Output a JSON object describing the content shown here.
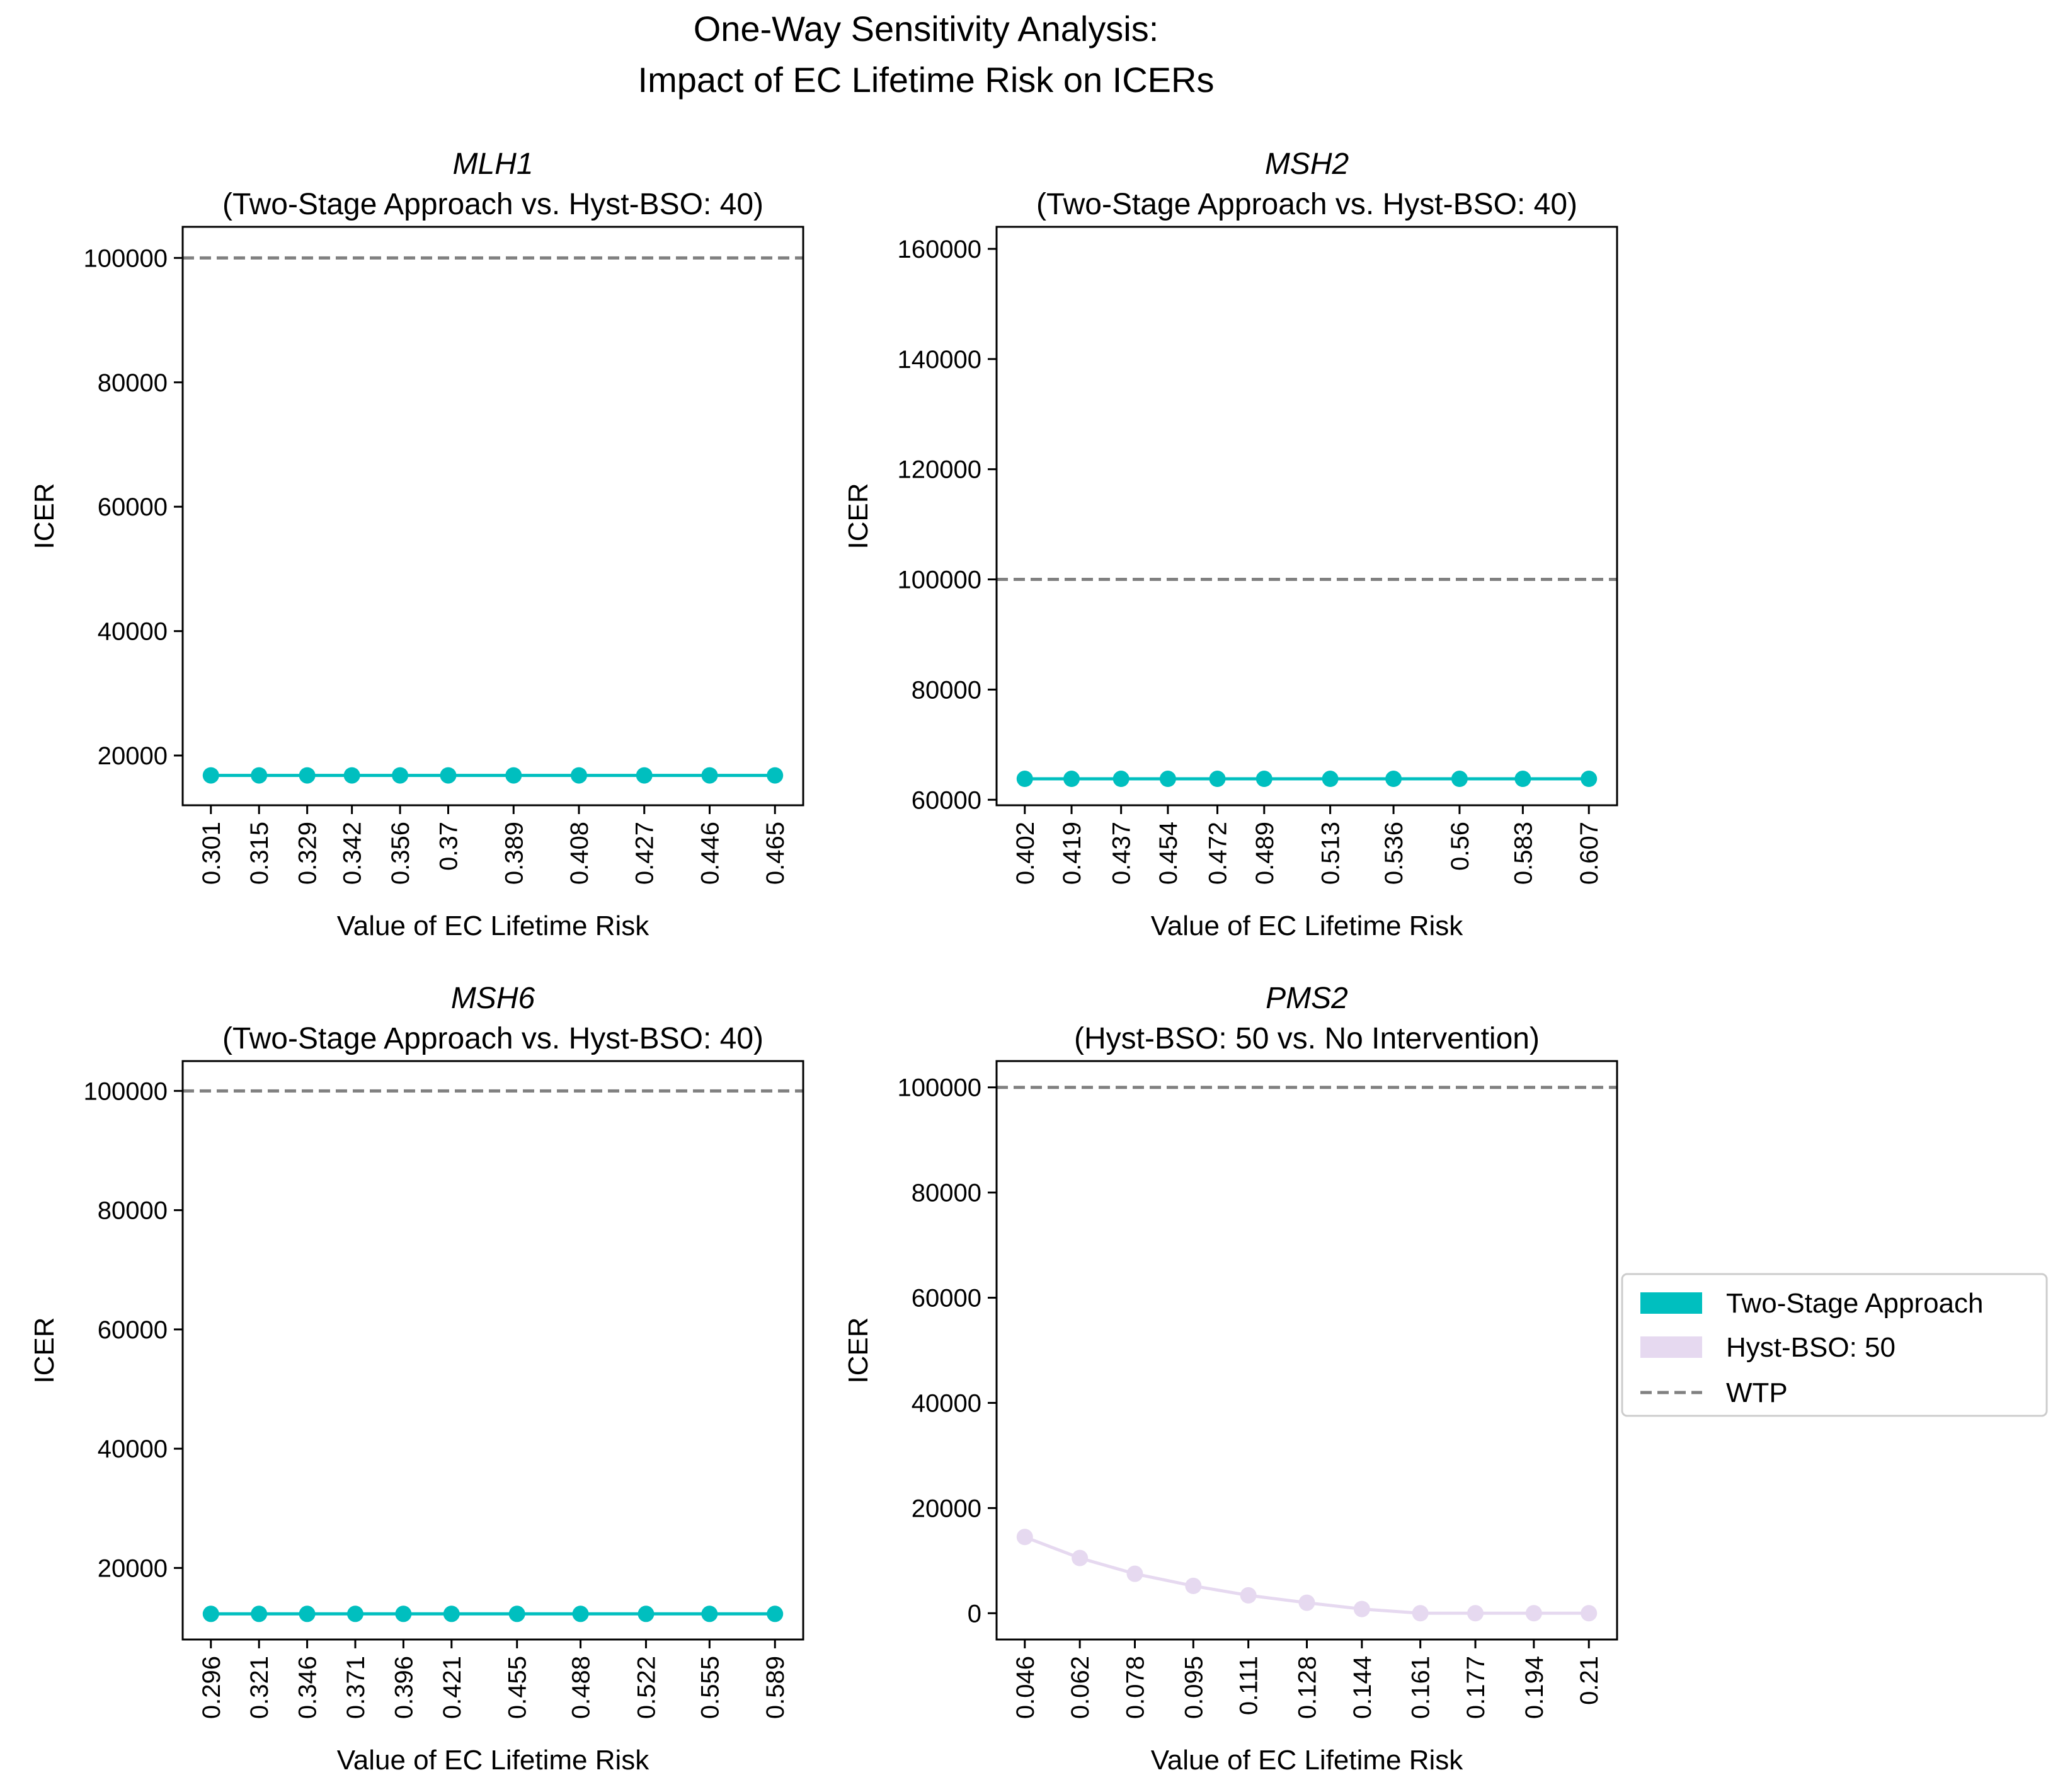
{
  "figure": {
    "title_line1": "One-Way Sensitivity Analysis:",
    "title_line2": "Impact of EC Lifetime Risk on ICERs"
  },
  "legend": {
    "items": [
      {
        "label": "Two-Stage Approach",
        "color": "#00bfbf",
        "kind": "patch"
      },
      {
        "label": "Hyst-BSO: 50",
        "color": "#e6d9f0",
        "kind": "patch"
      },
      {
        "label": "WTP",
        "color": "#808080",
        "kind": "dashed-line"
      }
    ]
  },
  "chart_data": [
    {
      "type": "line",
      "title_gene": "MLH1",
      "title_sub": "(Two-Stage Approach vs. Hyst-BSO: 40)",
      "xlabel": "Value of EC Lifetime Risk",
      "ylabel": "ICER",
      "x": [
        0.301,
        0.315,
        0.329,
        0.342,
        0.356,
        0.37,
        0.389,
        0.408,
        0.427,
        0.446,
        0.465
      ],
      "x_tick_labels": [
        "0.301",
        "0.315",
        "0.329",
        "0.342",
        "0.356",
        "0.37",
        "0.389",
        "0.408",
        "0.427",
        "0.446",
        "0.465"
      ],
      "series": [
        {
          "label": "Two-Stage Approach",
          "color": "#00bfbf",
          "values": [
            16800,
            16800,
            16800,
            16800,
            16800,
            16800,
            16800,
            16800,
            16800,
            16800,
            16800
          ]
        }
      ],
      "wtp": 100000,
      "wtp_color": "#808080",
      "ylim": [
        12000,
        105000
      ],
      "yticks": [
        20000,
        40000,
        60000,
        80000,
        100000
      ]
    },
    {
      "type": "line",
      "title_gene": "MSH2",
      "title_sub": "(Two-Stage Approach vs. Hyst-BSO: 40)",
      "xlabel": "Value of EC Lifetime Risk",
      "ylabel": "ICER",
      "x": [
        0.402,
        0.419,
        0.437,
        0.454,
        0.472,
        0.489,
        0.513,
        0.536,
        0.56,
        0.583,
        0.607
      ],
      "x_tick_labels": [
        "0.402",
        "0.419",
        "0.437",
        "0.454",
        "0.472",
        "0.489",
        "0.513",
        "0.536",
        "0.56",
        "0.583",
        "0.607"
      ],
      "series": [
        {
          "label": "Two-Stage Approach",
          "color": "#00bfbf",
          "values": [
            63800,
            63800,
            63800,
            63800,
            63800,
            63800,
            63800,
            63800,
            63800,
            63800,
            63800
          ]
        }
      ],
      "wtp": 100000,
      "wtp_color": "#808080",
      "ylim": [
        59000,
        164000
      ],
      "yticks": [
        60000,
        80000,
        100000,
        120000,
        140000,
        160000
      ]
    },
    {
      "type": "line",
      "title_gene": "MSH6",
      "title_sub": "(Two-Stage Approach vs. Hyst-BSO: 40)",
      "xlabel": "Value of EC Lifetime Risk",
      "ylabel": "ICER",
      "x": [
        0.296,
        0.321,
        0.346,
        0.371,
        0.396,
        0.421,
        0.455,
        0.488,
        0.522,
        0.555,
        0.589
      ],
      "x_tick_labels": [
        "0.296",
        "0.321",
        "0.346",
        "0.371",
        "0.396",
        "0.421",
        "0.455",
        "0.488",
        "0.522",
        "0.555",
        "0.589"
      ],
      "series": [
        {
          "label": "Two-Stage Approach",
          "color": "#00bfbf",
          "values": [
            12300,
            12300,
            12300,
            12300,
            12300,
            12300,
            12300,
            12300,
            12300,
            12300,
            12300
          ]
        }
      ],
      "wtp": 100000,
      "wtp_color": "#808080",
      "ylim": [
        8000,
        105000
      ],
      "yticks": [
        20000,
        40000,
        60000,
        80000,
        100000
      ]
    },
    {
      "type": "line",
      "title_gene": "PMS2",
      "title_sub": "(Hyst-BSO: 50 vs. No Intervention)",
      "xlabel": "Value of EC Lifetime Risk",
      "ylabel": "ICER",
      "x": [
        0.046,
        0.062,
        0.078,
        0.095,
        0.111,
        0.128,
        0.144,
        0.161,
        0.177,
        0.194,
        0.21
      ],
      "x_tick_labels": [
        "0.046",
        "0.062",
        "0.078",
        "0.095",
        "0.111",
        "0.128",
        "0.144",
        "0.161",
        "0.177",
        "0.194",
        "0.21"
      ],
      "series": [
        {
          "label": "Hyst-BSO: 50",
          "color": "#e6d9f0",
          "values": [
            14500,
            10500,
            7500,
            5200,
            3400,
            2000,
            800,
            0,
            0,
            0,
            0
          ]
        }
      ],
      "wtp": 100000,
      "wtp_color": "#808080",
      "ylim": [
        -5000,
        105000
      ],
      "yticks": [
        0,
        20000,
        40000,
        60000,
        80000,
        100000
      ]
    }
  ]
}
